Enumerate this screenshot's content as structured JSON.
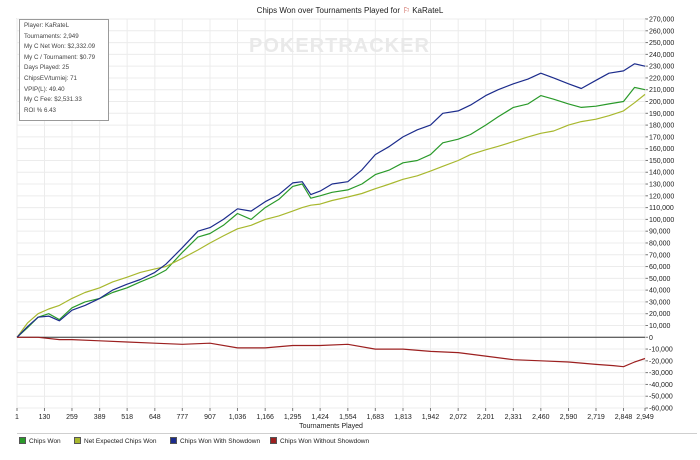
{
  "title": {
    "prefix": "Chips Won over Tournaments Played for",
    "player": "KaRateL",
    "icon": "player-flag-icon"
  },
  "watermark": "POKERTRACKER",
  "stats": [
    "Player: KaRateL",
    "Tournaments: 2,949",
    "My C Net Won: $2,332.09",
    "My C / Tournament: $0.79",
    "Days Played: 25",
    "ChipsEV/turniej: 71",
    "VPIP(L): 49.40",
    "My C Fee: $2,531.33",
    "ROI % 6.43"
  ],
  "chart_data": {
    "type": "line",
    "title": "Chips Won over Tournaments Played for KaRateL",
    "xlabel": "Tournaments Played",
    "ylabel": "",
    "xlim": [
      1,
      2949
    ],
    "ylim": [
      -60000,
      270000
    ],
    "x_ticks": [
      1,
      130,
      259,
      389,
      518,
      648,
      777,
      907,
      1036,
      1166,
      1295,
      1424,
      1554,
      1683,
      1813,
      1942,
      2072,
      2201,
      2331,
      2460,
      2590,
      2719,
      2848,
      2949
    ],
    "x_tick_labels": [
      "1",
      "130",
      "259",
      "389",
      "518",
      "648",
      "777",
      "907",
      "1,036",
      "1,166",
      "1,295",
      "1,424",
      "1,554",
      "1,683",
      "1,813",
      "1,942",
      "2,072",
      "2,201",
      "2,331",
      "2,460",
      "2,590",
      "2,719",
      "2,848",
      "2,949"
    ],
    "y_ticks": [
      -60000,
      -50000,
      -40000,
      -30000,
      -20000,
      -10000,
      0,
      10000,
      20000,
      30000,
      40000,
      50000,
      60000,
      70000,
      80000,
      90000,
      100000,
      110000,
      120000,
      130000,
      140000,
      150000,
      160000,
      170000,
      180000,
      190000,
      200000,
      210000,
      220000,
      230000,
      240000,
      250000,
      260000,
      270000
    ],
    "y_tick_labels": [
      "-60,000",
      "-50,000",
      "-40,000",
      "-30,000",
      "-20,000",
      "-10,000",
      "0",
      "10,000",
      "20,000",
      "30,000",
      "40,000",
      "50,000",
      "60,000",
      "70,000",
      "80,000",
      "90,000",
      "100,000",
      "110,000",
      "120,000",
      "130,000",
      "140,000",
      "150,000",
      "160,000",
      "170,000",
      "180,000",
      "190,000",
      "200,000",
      "210,000",
      "220,000",
      "230,000",
      "240,000",
      "250,000",
      "260,000",
      "270,000"
    ],
    "grid": true,
    "legend_position": "bottom",
    "series": [
      {
        "name": "Chips Won",
        "color": "#2a9a2a",
        "x": [
          1,
          50,
          100,
          150,
          200,
          259,
          320,
          389,
          450,
          518,
          580,
          648,
          700,
          777,
          850,
          907,
          970,
          1036,
          1100,
          1166,
          1230,
          1295,
          1340,
          1380,
          1424,
          1480,
          1554,
          1620,
          1683,
          1750,
          1813,
          1880,
          1942,
          2000,
          2072,
          2130,
          2201,
          2260,
          2331,
          2400,
          2460,
          2520,
          2590,
          2650,
          2719,
          2780,
          2848,
          2900,
          2949
        ],
        "y": [
          0,
          8000,
          17000,
          20000,
          15000,
          25000,
          30000,
          33000,
          38000,
          42000,
          47000,
          52000,
          57000,
          72000,
          85000,
          88000,
          95000,
          105000,
          100000,
          110000,
          117000,
          128000,
          130000,
          118000,
          120000,
          123000,
          125000,
          130000,
          138000,
          142000,
          148000,
          150000,
          155000,
          165000,
          168000,
          172000,
          180000,
          187000,
          195000,
          198000,
          205000,
          202000,
          198000,
          195000,
          196000,
          198000,
          200000,
          212000,
          210000
        ]
      },
      {
        "name": "Net Expected Chips Won",
        "color": "#a8b82e",
        "x": [
          1,
          50,
          100,
          150,
          200,
          259,
          320,
          389,
          450,
          518,
          580,
          648,
          700,
          777,
          850,
          907,
          970,
          1036,
          1100,
          1166,
          1230,
          1295,
          1340,
          1380,
          1424,
          1480,
          1554,
          1620,
          1683,
          1750,
          1813,
          1880,
          1942,
          2000,
          2072,
          2130,
          2201,
          2260,
          2331,
          2400,
          2460,
          2520,
          2590,
          2650,
          2719,
          2780,
          2848,
          2900,
          2949
        ],
        "y": [
          0,
          12000,
          20000,
          24000,
          27000,
          33000,
          38000,
          42000,
          47000,
          51000,
          55000,
          58000,
          60000,
          67000,
          74000,
          80000,
          86000,
          92000,
          95000,
          100000,
          103000,
          107000,
          110000,
          112000,
          113000,
          116000,
          119000,
          122000,
          126000,
          130000,
          134000,
          137000,
          141000,
          145000,
          150000,
          155000,
          159000,
          162000,
          166000,
          170000,
          173000,
          175000,
          180000,
          183000,
          185000,
          188000,
          192000,
          199000,
          206000
        ]
      },
      {
        "name": "Chips Won With Showdown",
        "color": "#1c2c8c",
        "x": [
          1,
          50,
          100,
          150,
          200,
          259,
          320,
          389,
          450,
          518,
          580,
          648,
          700,
          777,
          850,
          907,
          970,
          1036,
          1100,
          1166,
          1230,
          1295,
          1340,
          1380,
          1424,
          1480,
          1554,
          1620,
          1683,
          1750,
          1813,
          1880,
          1942,
          2000,
          2072,
          2130,
          2201,
          2260,
          2331,
          2400,
          2460,
          2520,
          2590,
          2650,
          2719,
          2780,
          2848,
          2900,
          2949
        ],
        "y": [
          0,
          9000,
          17000,
          18000,
          14000,
          23000,
          27000,
          33000,
          40000,
          45000,
          49000,
          55000,
          62000,
          76000,
          90000,
          93000,
          100000,
          109000,
          107000,
          115000,
          121000,
          131000,
          132000,
          121000,
          124000,
          130000,
          132000,
          142000,
          155000,
          162000,
          170000,
          176000,
          180000,
          190000,
          192000,
          197000,
          205000,
          210000,
          215000,
          219000,
          224000,
          220000,
          215000,
          211000,
          218000,
          224000,
          226000,
          232000,
          230000
        ]
      },
      {
        "name": "Chips Won Without Showdown",
        "color": "#9c2020",
        "x": [
          1,
          100,
          200,
          259,
          389,
          518,
          648,
          777,
          907,
          1036,
          1166,
          1295,
          1424,
          1554,
          1683,
          1813,
          1942,
          2072,
          2201,
          2331,
          2460,
          2590,
          2719,
          2800,
          2848,
          2900,
          2949
        ],
        "y": [
          0,
          0,
          -2000,
          -2000,
          -3000,
          -4000,
          -5000,
          -6000,
          -5000,
          -9000,
          -9000,
          -7000,
          -7000,
          -6000,
          -10000,
          -10000,
          -12000,
          -13000,
          -16000,
          -19000,
          -20000,
          -21000,
          -23000,
          -24000,
          -25000,
          -21000,
          -18000
        ]
      }
    ]
  },
  "legend": {
    "items": [
      {
        "label": "Chips Won",
        "color": "#2a9a2a"
      },
      {
        "label": "Net Expected Chips Won",
        "color": "#a8b82e"
      },
      {
        "label": "Chips Won With Showdown",
        "color": "#1c2c8c"
      },
      {
        "label": "Chips Won Without Showdown",
        "color": "#9c2020"
      }
    ]
  }
}
